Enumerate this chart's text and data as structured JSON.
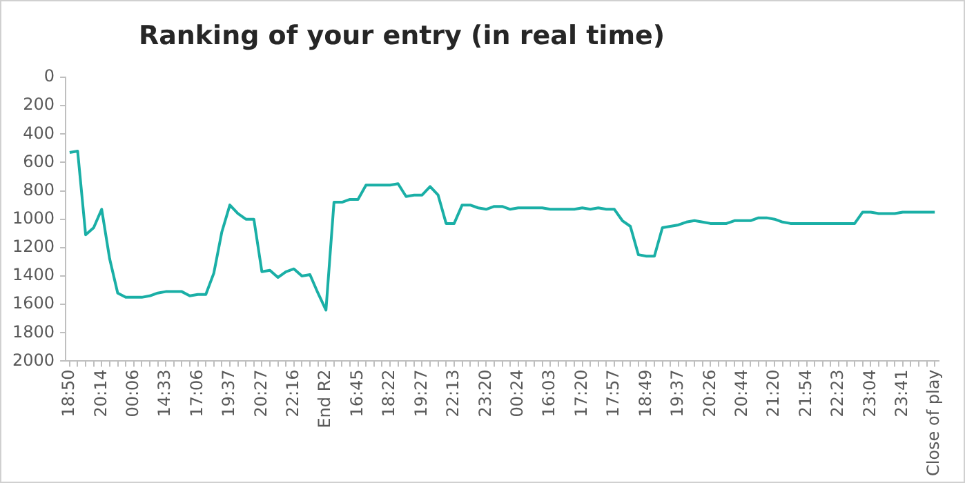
{
  "chart_data": {
    "type": "line",
    "title": "Ranking of your entry (in real time)",
    "categories": [
      "18:50",
      null,
      null,
      null,
      "20:14",
      null,
      null,
      null,
      "00:06",
      null,
      null,
      null,
      "14:33",
      null,
      null,
      null,
      "17:06",
      null,
      null,
      null,
      "19:37",
      null,
      null,
      null,
      "20:27",
      null,
      null,
      null,
      "22:16",
      null,
      null,
      null,
      "End R2",
      null,
      null,
      null,
      "16:45",
      null,
      null,
      null,
      "18:22",
      null,
      null,
      null,
      "19:27",
      null,
      null,
      null,
      "22:13",
      null,
      null,
      null,
      "23:20",
      null,
      null,
      null,
      "00:24",
      null,
      null,
      null,
      "16:03",
      null,
      null,
      null,
      "17:20",
      null,
      null,
      null,
      "17:57",
      null,
      null,
      null,
      "18:49",
      null,
      null,
      null,
      "19:37",
      null,
      null,
      null,
      "20:26",
      null,
      null,
      null,
      "20:44",
      null,
      null,
      null,
      "21:20",
      null,
      null,
      null,
      "21:54",
      null,
      null,
      null,
      "22:23",
      null,
      null,
      null,
      "23:04",
      null,
      null,
      null,
      "23:41",
      null,
      null,
      null,
      "Close of play"
    ],
    "series": [
      {
        "color": "#1aafa6",
        "values": [
          530,
          520,
          1110,
          1060,
          930,
          1280,
          1520,
          1550,
          1550,
          1550,
          1540,
          1520,
          1510,
          1510,
          1510,
          1540,
          1530,
          1530,
          1380,
          1090,
          900,
          960,
          1000,
          1000,
          1370,
          1360,
          1410,
          1370,
          1350,
          1400,
          1390,
          1520,
          1640,
          880,
          880,
          860,
          860,
          760,
          760,
          760,
          760,
          750,
          840,
          830,
          830,
          770,
          830,
          1030,
          1030,
          900,
          900,
          920,
          930,
          910,
          910,
          930,
          920,
          920,
          920,
          920,
          930,
          930,
          930,
          930,
          920,
          930,
          920,
          930,
          930,
          1010,
          1050,
          1250,
          1260,
          1260,
          1060,
          1050,
          1040,
          1020,
          1010,
          1020,
          1030,
          1030,
          1030,
          1010,
          1010,
          1010,
          990,
          990,
          1000,
          1020,
          1030,
          1030,
          1030,
          1030,
          1030,
          1030,
          1030,
          1030,
          1030,
          950,
          950,
          960,
          960,
          960,
          950,
          950,
          950,
          950,
          950
        ]
      }
    ],
    "ylim": [
      2000,
      0
    ],
    "yticks": [
      0,
      200,
      400,
      600,
      800,
      1000,
      1200,
      1400,
      1600,
      1800,
      2000
    ],
    "grid": false,
    "legend": false,
    "marker": "none",
    "line_style": "solid"
  }
}
